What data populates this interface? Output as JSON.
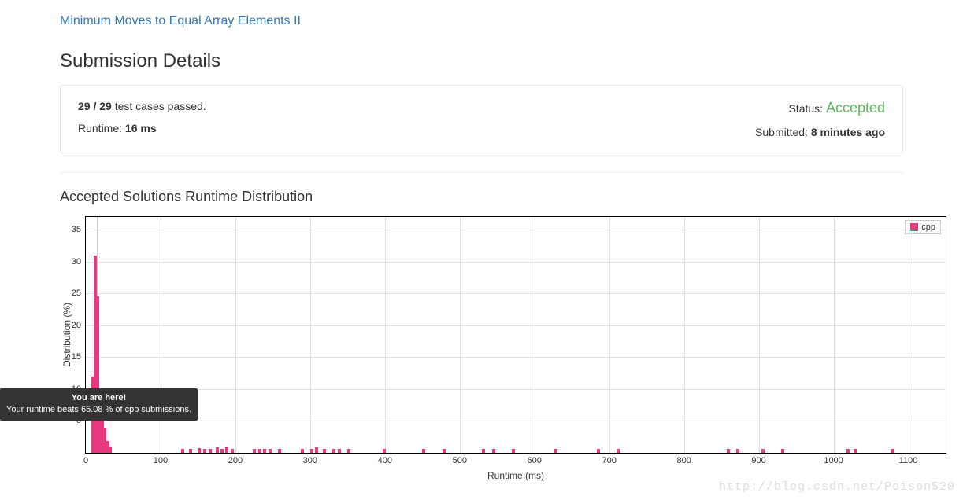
{
  "problem": {
    "title": "Minimum Moves to Equal Array Elements II"
  },
  "section_title": "Submission Details",
  "details": {
    "testcases_passed": "29 / 29",
    "testcases_label": " test cases passed.",
    "runtime_label": "Runtime: ",
    "runtime_value": "16 ms",
    "status_label": "Status: ",
    "status_value": "Accepted",
    "submitted_label": "Submitted: ",
    "submitted_value": "8 minutes ago"
  },
  "chart": {
    "title": "Accepted Solutions Runtime Distribution",
    "type": "bar",
    "xlabel": "Runtime (ms)",
    "ylabel": "Distribution (%)",
    "xlim": [
      0,
      1150
    ],
    "ylim": [
      0,
      37
    ],
    "xtick_step": 100,
    "yticks": [
      5,
      10,
      15,
      20,
      25,
      30,
      35
    ],
    "bar_color": "#e6397e",
    "grid_color": "#e0e0e0",
    "background_color": "#ffffff",
    "border_color": "#000000",
    "bars": [
      {
        "x": 9,
        "y": 12.0
      },
      {
        "x": 12,
        "y": 10.5
      },
      {
        "x": 13,
        "y": 31.0
      },
      {
        "x": 16,
        "y": 24.5
      },
      {
        "x": 19,
        "y": 7.5
      },
      {
        "x": 22,
        "y": 6.0
      },
      {
        "x": 25,
        "y": 4.0
      },
      {
        "x": 29,
        "y": 1.8
      },
      {
        "x": 33,
        "y": 1.0
      },
      {
        "x": 130,
        "y": 0.6
      },
      {
        "x": 140,
        "y": 0.6
      },
      {
        "x": 152,
        "y": 0.8
      },
      {
        "x": 159,
        "y": 0.6
      },
      {
        "x": 166,
        "y": 0.6
      },
      {
        "x": 176,
        "y": 0.9
      },
      {
        "x": 182,
        "y": 0.6
      },
      {
        "x": 189,
        "y": 1.0
      },
      {
        "x": 196,
        "y": 0.6
      },
      {
        "x": 225,
        "y": 0.6
      },
      {
        "x": 233,
        "y": 0.6
      },
      {
        "x": 239,
        "y": 0.6
      },
      {
        "x": 246,
        "y": 0.6
      },
      {
        "x": 259,
        "y": 0.6
      },
      {
        "x": 290,
        "y": 0.6
      },
      {
        "x": 302,
        "y": 0.6
      },
      {
        "x": 309,
        "y": 0.9
      },
      {
        "x": 319,
        "y": 0.6
      },
      {
        "x": 332,
        "y": 0.6
      },
      {
        "x": 339,
        "y": 0.6
      },
      {
        "x": 352,
        "y": 0.6
      },
      {
        "x": 399,
        "y": 0.6
      },
      {
        "x": 452,
        "y": 0.6
      },
      {
        "x": 479,
        "y": 0.6
      },
      {
        "x": 532,
        "y": 0.6
      },
      {
        "x": 545,
        "y": 0.6
      },
      {
        "x": 572,
        "y": 0.6
      },
      {
        "x": 629,
        "y": 0.6
      },
      {
        "x": 686,
        "y": 0.6
      },
      {
        "x": 712,
        "y": 0.6
      },
      {
        "x": 859,
        "y": 0.6
      },
      {
        "x": 872,
        "y": 0.6
      },
      {
        "x": 906,
        "y": 0.6
      },
      {
        "x": 932,
        "y": 0.6
      },
      {
        "x": 1019,
        "y": 0.6
      },
      {
        "x": 1029,
        "y": 0.6
      },
      {
        "x": 1079,
        "y": 0.6
      }
    ],
    "marker": {
      "x": 16
    },
    "legend": {
      "label": "cpp",
      "swatch_color": "#e6397e"
    }
  },
  "tooltip": {
    "title": "You are here!",
    "body": "Your runtime beats 65.08 % of cpp submissions.",
    "bg": "#333333",
    "fg": "#ffffff"
  },
  "watermark": "http://blog.csdn.net/Poison520"
}
